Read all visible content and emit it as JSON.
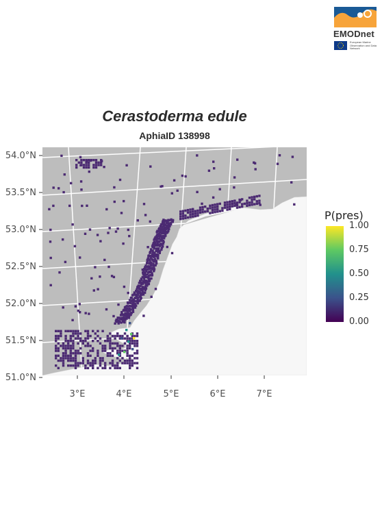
{
  "logo": {
    "name": "EMODnet",
    "partner_text": "European Marine Observation and Data Network",
    "colors": {
      "orange": "#f7a43a",
      "blue": "#1a5a96",
      "eu_blue": "#0e3a8a",
      "eu_star": "#ffdd00"
    }
  },
  "title": "Cerastoderma edule",
  "subtitle": "AphiaID 138998",
  "map": {
    "x_ticks": [
      "3°E",
      "4°E",
      "5°E",
      "6°E",
      "7°E"
    ],
    "y_ticks": [
      "54.0°N",
      "53.5°N",
      "53.0°N",
      "52.5°N",
      "52.0°N",
      "51.5°N",
      "51.0°N"
    ],
    "extent": {
      "lon": [
        2.3,
        7.9
      ],
      "lat": [
        50.95,
        54.1
      ]
    },
    "colors": {
      "sea": "#bdbdbd",
      "land": "#f7f7f7",
      "grid": "#ffffff",
      "low": "#440154"
    }
  },
  "legend": {
    "title": "P(pres)",
    "labels": [
      "1.00",
      "0.75",
      "0.50",
      "0.25",
      "0.00"
    ],
    "colors": [
      "#fde725",
      "#5ec962",
      "#21918c",
      "#3b528b",
      "#440154"
    ]
  }
}
